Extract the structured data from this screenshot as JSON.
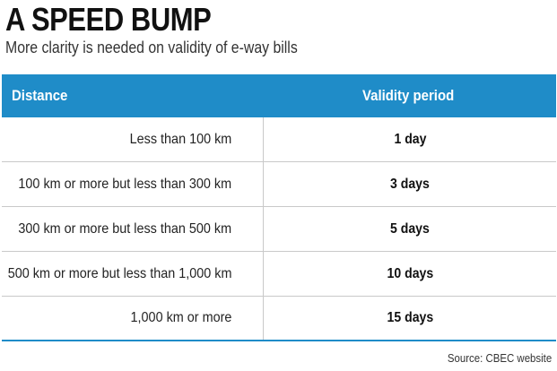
{
  "header": {
    "title": "A SPEED BUMP",
    "subtitle": "More clarity is needed on validity of e-way bills"
  },
  "chart_data": {
    "type": "table",
    "columns": [
      "Distance",
      "Validity period"
    ],
    "rows": [
      [
        "Less than 100 km",
        "1 day"
      ],
      [
        "100 km or more but less than 300 km",
        "3 days"
      ],
      [
        "300 km or more but less than 500 km",
        "5 days"
      ],
      [
        "500 km or more but less than 1,000 km",
        "10 days"
      ],
      [
        "1,000 km or more",
        "15 days"
      ]
    ]
  },
  "footer": {
    "source": "Source: CBEC website"
  },
  "colors": {
    "header_bg": "#1f8cc8",
    "header_text": "#ffffff",
    "row_divider": "#c9c9c9",
    "bottom_rule": "#1f8cc8"
  }
}
